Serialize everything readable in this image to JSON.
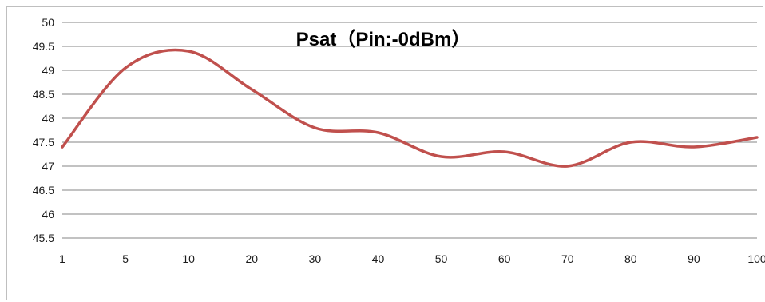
{
  "chart_data": {
    "type": "line",
    "title": "Psat（Pin:-0dBm）",
    "xlabel": "",
    "ylabel": "",
    "categories": [
      "1",
      "5",
      "10",
      "20",
      "30",
      "40",
      "50",
      "60",
      "70",
      "80",
      "90",
      "100"
    ],
    "series": [
      {
        "values": [
          47.4,
          49.05,
          49.4,
          48.6,
          47.8,
          47.7,
          47.2,
          47.3,
          47.0,
          47.5,
          47.4,
          47.6
        ]
      }
    ],
    "yticks": [
      "45.5",
      "46",
      "46.5",
      "47",
      "47.5",
      "48",
      "48.5",
      "49",
      "49.5",
      "50"
    ],
    "ylim": [
      45.5,
      50
    ],
    "grid": "horizontal",
    "legend": "none",
    "line_color": "#c0504d",
    "grid_color": "#868686"
  }
}
